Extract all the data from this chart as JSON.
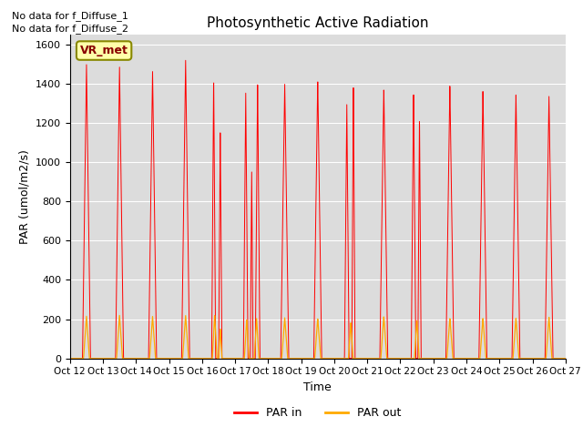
{
  "title": "Photosynthetic Active Radiation",
  "xlabel": "Time",
  "ylabel": "PAR (umol/m2/s)",
  "ylim": [
    0,
    1650
  ],
  "yticks": [
    0,
    200,
    400,
    600,
    800,
    1000,
    1200,
    1400,
    1600
  ],
  "background_color": "#dcdcdc",
  "text_annotations": [
    "No data for f_Diffuse_1",
    "No data for f_Diffuse_2"
  ],
  "legend_box_label": "VR_met",
  "legend_box_color": "#ffffaa",
  "legend_box_border": "#888800",
  "line_par_in_color": "#ff0000",
  "line_par_out_color": "#ffaa00",
  "x_tick_labels": [
    "Oct 12",
    "Oct 13",
    "Oct 14",
    "Oct 15",
    "Oct 16",
    "Oct 17",
    "Oct 18",
    "Oct 19",
    "Oct 20",
    "Oct 21",
    "Oct 22",
    "Oct 23",
    "Oct 24",
    "Oct 25",
    "Oct 26",
    "Oct 27"
  ],
  "days": 16,
  "par_in_peaks": [
    1500,
    1490,
    1470,
    1530,
    1445,
    1365,
    1415,
    1430,
    1300,
    1385,
    1375,
    1400,
    1370,
    1350,
    1340,
    1330
  ],
  "par_out_peaks": [
    215,
    220,
    215,
    220,
    220,
    150,
    210,
    205,
    185,
    215,
    195,
    205,
    205,
    205,
    210,
    0
  ]
}
